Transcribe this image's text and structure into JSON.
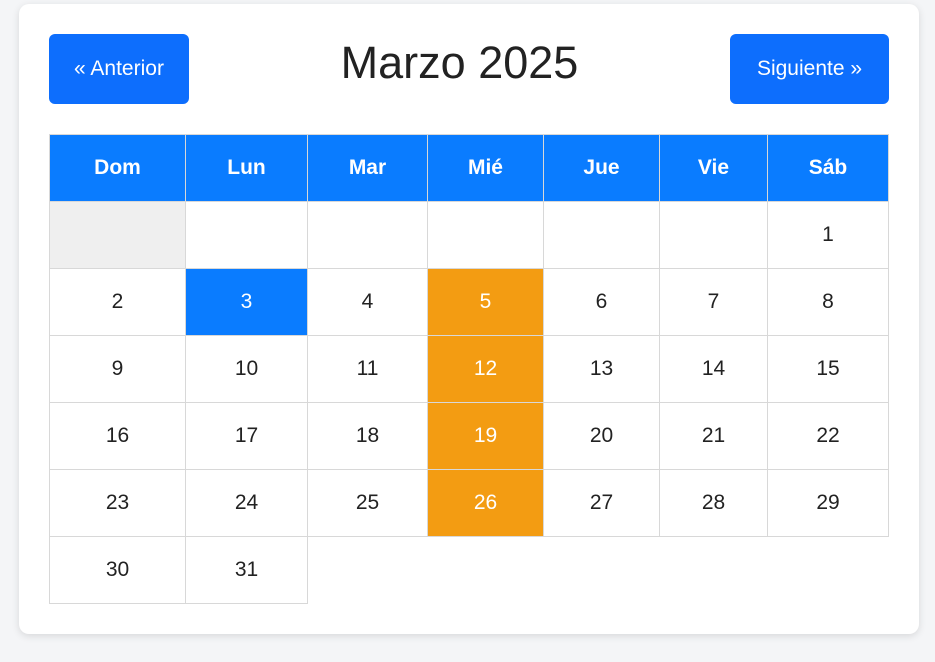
{
  "calendar": {
    "month_title": "Marzo 2025",
    "prev_label": "« Anterior",
    "next_label": "Siguiente »",
    "weekdays": [
      "Dom",
      "Lun",
      "Mar",
      "Mié",
      "Jue",
      "Vie",
      "Sáb"
    ],
    "weeks": [
      [
        "",
        "",
        "",
        "",
        "",
        "",
        "1"
      ],
      [
        "2",
        "3",
        "4",
        "5",
        "6",
        "7",
        "8"
      ],
      [
        "9",
        "10",
        "11",
        "12",
        "13",
        "14",
        "15"
      ],
      [
        "16",
        "17",
        "18",
        "19",
        "20",
        "21",
        "22"
      ],
      [
        "23",
        "24",
        "25",
        "26",
        "27",
        "28",
        "29"
      ],
      [
        "30",
        "31",
        "",
        "",
        "",
        "",
        ""
      ]
    ],
    "today": "3",
    "highlighted_days": [
      "5",
      "12",
      "19",
      "26"
    ]
  },
  "colors": {
    "primary": "#0d6efd",
    "header": "#0a7cff",
    "highlight": "#f39c12",
    "empty_cell": "#efefef"
  }
}
